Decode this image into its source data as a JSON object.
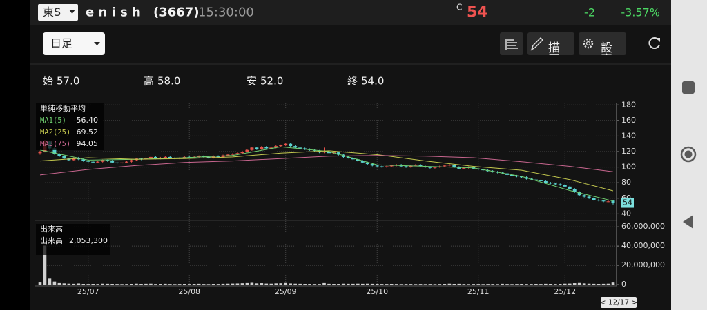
{
  "header": {
    "market": "東S",
    "name": "e n i s h",
    "code": "(3667)",
    "time": "15:30:00",
    "price_flag": "C",
    "price": "54",
    "change": "-2",
    "change_pct": "-3.57%"
  },
  "toolbar": {
    "period": "日足",
    "draw": "描画",
    "settings": "設定"
  },
  "ohlc": [
    {
      "label": "始",
      "value": "57.0"
    },
    {
      "label": "高",
      "value": "58.0"
    },
    {
      "label": "安",
      "value": "52.0"
    },
    {
      "label": "終",
      "value": "54.0"
    }
  ],
  "chart": {
    "type": "candlestick",
    "legend_title": "単純移動平均",
    "grid": true,
    "up_color": "#e5534b",
    "down_color": "#5ad2d0",
    "ylim": [
      35,
      182
    ],
    "yticks": [
      40,
      60,
      80,
      100,
      120,
      140,
      160,
      180
    ],
    "xticks": [
      {
        "value": 10,
        "label": "25/07"
      },
      {
        "value": 31,
        "label": "25/08"
      },
      {
        "value": 51,
        "label": "25/09"
      },
      {
        "value": 70,
        "label": "25/10"
      },
      {
        "value": 91,
        "label": "25/11"
      },
      {
        "value": 109,
        "label": "25/12"
      }
    ],
    "date_label": "< 12/17 >",
    "ma_x": [
      0,
      10,
      20,
      30,
      40,
      50,
      60,
      70,
      80,
      90,
      100,
      110,
      119
    ],
    "ma": [
      {
        "name": "MA1(5)",
        "last": "56.40",
        "color": "#6fcf6f",
        "values": [
          122,
          109,
          110,
          112,
          115,
          126,
          120,
          103,
          101,
          99,
          88,
          70,
          56.4
        ]
      },
      {
        "name": "MA2(25)",
        "last": "69.52",
        "color": "#c3c84e",
        "values": [
          108,
          112,
          110,
          111,
          113,
          118,
          121,
          116,
          108,
          101,
          96,
          84,
          69.52
        ]
      },
      {
        "name": "MA3(75)",
        "last": "94.05",
        "color": "#c8668f",
        "values": [
          90,
          97,
          102,
          106,
          108,
          111,
          114,
          115,
          114,
          112,
          107,
          101,
          94.05
        ]
      }
    ],
    "candles": [
      [
        118,
        121,
        116,
        120
      ],
      [
        120,
        135,
        119,
        133
      ],
      [
        133,
        134,
        122,
        124
      ],
      [
        124,
        125,
        116,
        117
      ],
      [
        117,
        118,
        113,
        114
      ],
      [
        114,
        115,
        110,
        111
      ],
      [
        111,
        112,
        108,
        109
      ],
      [
        109,
        113,
        108,
        112
      ],
      [
        112,
        113,
        109,
        110
      ],
      [
        110,
        111,
        107,
        108
      ],
      [
        108,
        109,
        106,
        107
      ],
      [
        107,
        108,
        105,
        106
      ],
      [
        106,
        108,
        105,
        107
      ],
      [
        107,
        110,
        106,
        109
      ],
      [
        109,
        110,
        107,
        108
      ],
      [
        108,
        109,
        105,
        106
      ],
      [
        106,
        107,
        104,
        105
      ],
      [
        105,
        107,
        104,
        106
      ],
      [
        106,
        108,
        105,
        107
      ],
      [
        107,
        110,
        106,
        109
      ],
      [
        109,
        112,
        108,
        111
      ],
      [
        111,
        112,
        109,
        110
      ],
      [
        110,
        113,
        109,
        112
      ],
      [
        112,
        114,
        111,
        113
      ],
      [
        113,
        114,
        110,
        111
      ],
      [
        111,
        113,
        110,
        112
      ],
      [
        112,
        114,
        111,
        113
      ],
      [
        113,
        114,
        111,
        112
      ],
      [
        112,
        113,
        110,
        111
      ],
      [
        111,
        113,
        110,
        112
      ],
      [
        112,
        114,
        111,
        113
      ],
      [
        113,
        114,
        111,
        112
      ],
      [
        112,
        114,
        111,
        113
      ],
      [
        113,
        115,
        112,
        114
      ],
      [
        114,
        115,
        112,
        113
      ],
      [
        113,
        114,
        111,
        112
      ],
      [
        112,
        115,
        111,
        114
      ],
      [
        114,
        115,
        112,
        113
      ],
      [
        113,
        116,
        112,
        115
      ],
      [
        115,
        117,
        114,
        116
      ],
      [
        116,
        118,
        115,
        117
      ],
      [
        117,
        119,
        116,
        118
      ],
      [
        118,
        121,
        117,
        120
      ],
      [
        120,
        123,
        119,
        122
      ],
      [
        122,
        126,
        121,
        125
      ],
      [
        125,
        126,
        122,
        123
      ],
      [
        123,
        127,
        122,
        126
      ],
      [
        126,
        127,
        123,
        124
      ],
      [
        124,
        126,
        123,
        125
      ],
      [
        125,
        128,
        124,
        127
      ],
      [
        127,
        129,
        126,
        128
      ],
      [
        128,
        131,
        127,
        130
      ],
      [
        130,
        131,
        126,
        127
      ],
      [
        127,
        128,
        124,
        125
      ],
      [
        125,
        126,
        123,
        124
      ],
      [
        124,
        125,
        122,
        123
      ],
      [
        123,
        124,
        121,
        122
      ],
      [
        122,
        123,
        120,
        121
      ],
      [
        121,
        122,
        118,
        119
      ],
      [
        119,
        125,
        118,
        120
      ],
      [
        120,
        121,
        117,
        118
      ],
      [
        118,
        120,
        117,
        119
      ],
      [
        119,
        120,
        115,
        116
      ],
      [
        116,
        117,
        112,
        113
      ],
      [
        113,
        114,
        111,
        112
      ],
      [
        112,
        113,
        109,
        110
      ],
      [
        110,
        111,
        107,
        108
      ],
      [
        108,
        109,
        105,
        106
      ],
      [
        106,
        107,
        103,
        104
      ],
      [
        104,
        105,
        101,
        102
      ],
      [
        102,
        103,
        100,
        101
      ],
      [
        101,
        102,
        99,
        100
      ],
      [
        100,
        102,
        99,
        101
      ],
      [
        101,
        103,
        100,
        102
      ],
      [
        102,
        104,
        101,
        103
      ],
      [
        103,
        104,
        100,
        101
      ],
      [
        101,
        102,
        99,
        100
      ],
      [
        100,
        103,
        99,
        102
      ],
      [
        102,
        104,
        101,
        103
      ],
      [
        103,
        104,
        100,
        101
      ],
      [
        101,
        102,
        99,
        100
      ],
      [
        100,
        101,
        98,
        99
      ],
      [
        99,
        101,
        98,
        100
      ],
      [
        100,
        102,
        99,
        101
      ],
      [
        101,
        103,
        100,
        102
      ],
      [
        102,
        105,
        101,
        103
      ],
      [
        103,
        104,
        99,
        100
      ],
      [
        100,
        101,
        97,
        98
      ],
      [
        98,
        100,
        97,
        99
      ],
      [
        99,
        101,
        98,
        100
      ],
      [
        100,
        101,
        97,
        98
      ],
      [
        98,
        99,
        96,
        97
      ],
      [
        97,
        98,
        95,
        96
      ],
      [
        96,
        97,
        94,
        95
      ],
      [
        95,
        96,
        93,
        94
      ],
      [
        94,
        95,
        92,
        93
      ],
      [
        93,
        94,
        91,
        92
      ],
      [
        92,
        93,
        89,
        90
      ],
      [
        90,
        91,
        88,
        89
      ],
      [
        89,
        90,
        87,
        88
      ],
      [
        88,
        89,
        86,
        87
      ],
      [
        87,
        88,
        84,
        85
      ],
      [
        85,
        86,
        83,
        84
      ],
      [
        84,
        85,
        82,
        83
      ],
      [
        83,
        84,
        81,
        82
      ],
      [
        82,
        83,
        79,
        80
      ],
      [
        80,
        81,
        78,
        79
      ],
      [
        79,
        80,
        77,
        78
      ],
      [
        78,
        79,
        76,
        77
      ],
      [
        77,
        78,
        74,
        75
      ],
      [
        75,
        76,
        71,
        72
      ],
      [
        72,
        73,
        67,
        68
      ],
      [
        68,
        69,
        63,
        64
      ],
      [
        64,
        65,
        61,
        62
      ],
      [
        62,
        63,
        59,
        60
      ],
      [
        60,
        61,
        57,
        58
      ],
      [
        58,
        59,
        56,
        57
      ],
      [
        57,
        58,
        55,
        56
      ],
      [
        56,
        57,
        55,
        56
      ],
      [
        57,
        58,
        52,
        54
      ]
    ],
    "volume": {
      "title": "出来高",
      "label": "出来高",
      "last": "2,053,300",
      "color": "#d0d0d0",
      "ylim": [
        0,
        63000000
      ],
      "yticks": [
        0,
        {
          "value": 20000000,
          "label": "20,000,000"
        },
        {
          "value": 40000000,
          "label": "40,000,000"
        },
        {
          "value": 60000000,
          "label": "60,000,000"
        }
      ],
      "values": [
        2100000,
        40500000,
        6200000,
        3100000,
        1500000,
        1200000,
        900000,
        800000,
        1100000,
        700000,
        600000,
        700000,
        600000,
        900000,
        800000,
        700000,
        600000,
        500000,
        600000,
        700000,
        900000,
        700000,
        800000,
        900000,
        600000,
        700000,
        800000,
        600000,
        500000,
        600000,
        700000,
        600000,
        700000,
        800000,
        600000,
        500000,
        700000,
        600000,
        800000,
        900000,
        1000000,
        1100000,
        1300000,
        1500000,
        1800000,
        1200000,
        1400000,
        1000000,
        900000,
        1200000,
        1300000,
        1600000,
        1100000,
        900000,
        800000,
        700000,
        700000,
        600000,
        600000,
        1500000,
        800000,
        700000,
        700000,
        900000,
        800000,
        800000,
        900000,
        800000,
        900000,
        800000,
        700000,
        600000,
        600000,
        700000,
        600000,
        500000,
        600000,
        600000,
        500000,
        600000,
        500000,
        600000,
        500000,
        600000,
        700000,
        900000,
        700000,
        800000,
        600000,
        500000,
        600000,
        600000,
        500000,
        600000,
        600000,
        500000,
        800000,
        600000,
        500000,
        600000,
        700000,
        600000,
        600000,
        700000,
        600000,
        800000,
        700000,
        600000,
        700000,
        900000,
        1000000,
        1400000,
        1600000,
        1200000,
        900000,
        800000,
        700000,
        800000,
        900000,
        2053300
      ]
    }
  }
}
